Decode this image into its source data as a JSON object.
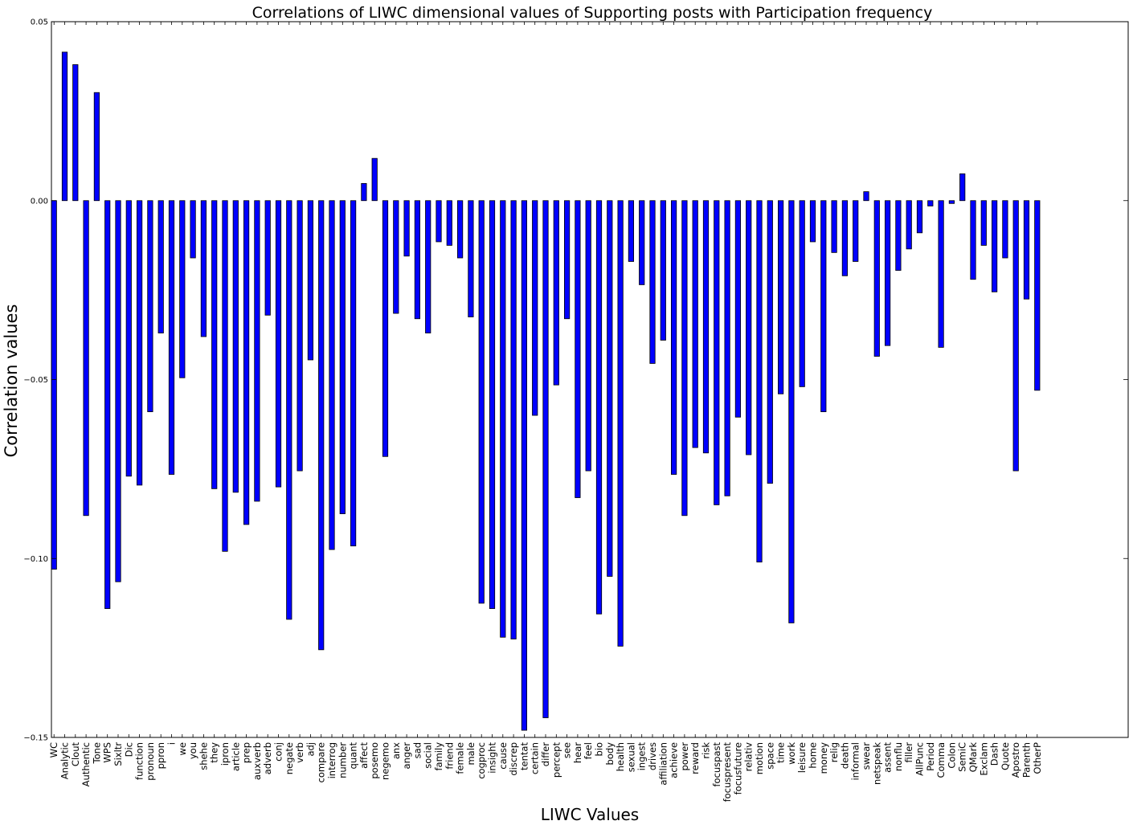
{
  "chart_data": {
    "type": "bar",
    "title": "Correlations of LIWC dimensional values of Supporting posts with Participation frequency",
    "xlabel": "LIWC Values",
    "ylabel": "Correlation values",
    "ylim": [
      -0.15,
      0.05
    ],
    "yticks": [
      "0.05",
      "0.00",
      "−0.05",
      "−0.10",
      "−0.15"
    ],
    "ytick_values": [
      0.05,
      0.0,
      -0.05,
      -0.1,
      -0.15
    ],
    "grid": false,
    "bar_color": "#0000ff",
    "categories": [
      "WC",
      "Analytic",
      "Clout",
      "Authentic",
      "Tone",
      "WPS",
      "Sixltr",
      "Dic",
      "function",
      "pronoun",
      "ppron",
      "i",
      "we",
      "you",
      "shehe",
      "they",
      "ipron",
      "article",
      "prep",
      "auxverb",
      "adverb",
      "conj",
      "negate",
      "verb",
      "adj",
      "compare",
      "interrog",
      "number",
      "quant",
      "affect",
      "posemo",
      "negemo",
      "anx",
      "anger",
      "sad",
      "social",
      "family",
      "friend",
      "female",
      "male",
      "cogproc",
      "insight",
      "cause",
      "discrep",
      "tentat",
      "certain",
      "differ",
      "percept",
      "see",
      "hear",
      "feel",
      "bio",
      "body",
      "health",
      "sexual",
      "ingest",
      "drives",
      "affiliation",
      "achieve",
      "power",
      "reward",
      "risk",
      "focuspast",
      "focuspresent",
      "focusfuture",
      "relativ",
      "motion",
      "space",
      "time",
      "work",
      "leisure",
      "home",
      "money",
      "relig",
      "death",
      "informal",
      "swear",
      "netspeak",
      "assent",
      "nonflu",
      "filler",
      "AllPunc",
      "Period",
      "Comma",
      "Colon",
      "SemiC",
      "QMark",
      "Exclam",
      "Dash",
      "Quote",
      "Apostro",
      "Parenth",
      "OtherP"
    ],
    "values": [
      -0.103,
      0.0415,
      0.038,
      -0.088,
      0.0302,
      -0.114,
      -0.1065,
      -0.077,
      -0.0795,
      -0.059,
      -0.037,
      -0.0765,
      -0.0495,
      -0.016,
      -0.038,
      -0.0805,
      -0.098,
      -0.0815,
      -0.0905,
      -0.084,
      -0.032,
      -0.08,
      -0.117,
      -0.0755,
      -0.0445,
      -0.1255,
      -0.0975,
      -0.0875,
      -0.0965,
      0.0048,
      0.0118,
      -0.0715,
      -0.0315,
      -0.0155,
      -0.033,
      -0.037,
      -0.0115,
      -0.0125,
      -0.016,
      -0.0325,
      -0.1125,
      -0.114,
      -0.122,
      -0.1225,
      -0.148,
      -0.06,
      -0.1445,
      -0.0515,
      -0.033,
      -0.083,
      -0.0755,
      -0.1155,
      -0.105,
      -0.1245,
      -0.017,
      -0.0235,
      -0.0455,
      -0.039,
      -0.0765,
      -0.088,
      -0.069,
      -0.0705,
      -0.085,
      -0.0825,
      -0.0605,
      -0.071,
      -0.101,
      -0.079,
      -0.054,
      -0.118,
      -0.052,
      -0.0115,
      -0.059,
      -0.0145,
      -0.021,
      -0.017,
      0.0025,
      -0.0435,
      -0.0405,
      -0.0195,
      -0.0135,
      -0.009,
      -0.0015,
      -0.041,
      -0.0008,
      0.0075,
      -0.022,
      -0.0125,
      -0.0255,
      -0.016,
      -0.0755,
      -0.0275,
      -0.053
    ]
  }
}
